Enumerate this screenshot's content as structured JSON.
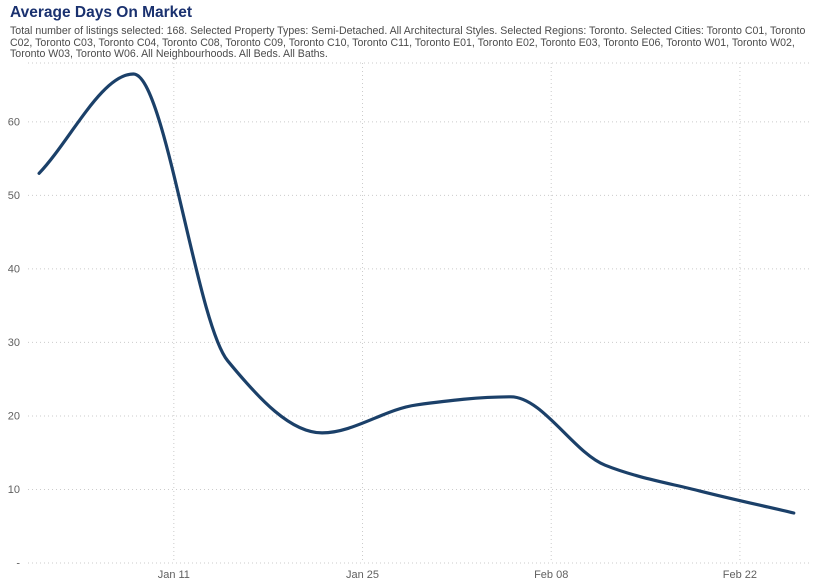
{
  "header": {
    "title": "Average Days On Market",
    "subtitle": "Total number of listings selected: 168. Selected Property Types: Semi-Detached. All Architectural Styles. Selected Regions: Toronto. Selected Cities: Toronto C01, Toronto C02, Toronto C03, Toronto C04, Toronto C08, Toronto C09, Toronto C10, Toronto C11, Toronto E01, Toronto E02, Toronto E03, Toronto E06, Toronto W01, Toronto W02, Toronto W03, Toronto W06. All Neighbourhoods. All Beds. All Baths."
  },
  "colors": {
    "title": "#1a316f",
    "subtitle": "#4b4b4b",
    "line": "#1b4069",
    "grid": "#cbcbcb",
    "axis_labels": "#606060",
    "background": "#ffffff"
  },
  "chart_data": {
    "type": "line",
    "title": "Average Days On Market",
    "xlabel": "",
    "ylabel": "",
    "series_name": "Average Days On Market",
    "x": [
      "Jan 01",
      "Jan 08",
      "Jan 15",
      "Jan 22",
      "Jan 29",
      "Feb 05",
      "Feb 12",
      "Feb 19",
      "Feb 26"
    ],
    "x_days": [
      0,
      7,
      14,
      21,
      28,
      35,
      42,
      49,
      56
    ],
    "values": [
      53,
      66.5,
      27.5,
      17.7,
      21.5,
      22.6,
      13.3,
      9.8,
      6.8
    ],
    "x_ticks": [
      {
        "label": "Jan 11",
        "day": 10
      },
      {
        "label": "Jan 25",
        "day": 24
      },
      {
        "label": "Feb 08",
        "day": 38
      },
      {
        "label": "Feb 22",
        "day": 52
      }
    ],
    "y_ticks": [
      {
        "label": "-",
        "value": 0
      },
      {
        "label": "10",
        "value": 10
      },
      {
        "label": "20",
        "value": 20
      },
      {
        "label": "30",
        "value": 30
      },
      {
        "label": "40",
        "value": 40
      },
      {
        "label": "50",
        "value": 50
      },
      {
        "label": "60",
        "value": 60
      }
    ],
    "ylim": [
      0,
      68
    ],
    "xlim_days": [
      -0.82,
      57.35
    ],
    "grid": "dotted",
    "legend_position": "none",
    "smoothing": "monotone-spline"
  }
}
